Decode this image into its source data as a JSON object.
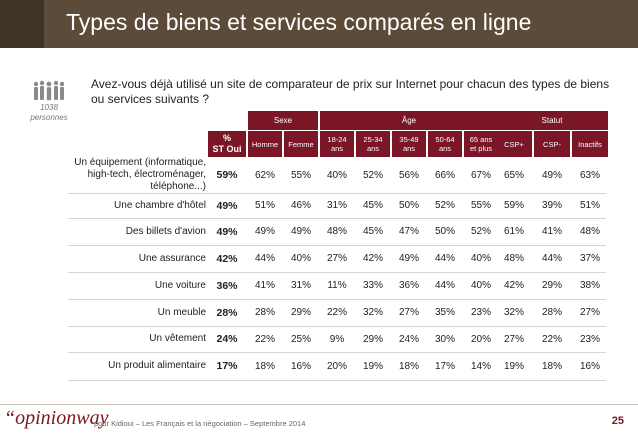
{
  "title": "Types de biens et services comparés en ligne",
  "question": "Avez-vous déjà utilisé un site de comparateur de prix sur Internet pour chacun des types de biens ou services suivants ?",
  "sample": [
    "1038",
    "personnes"
  ],
  "groups": [
    "Sexe",
    "Âge",
    "Statut"
  ],
  "headers": [
    "%\nST Oui",
    "Homme",
    "Femme",
    "18-24\nans",
    "25-34\nans",
    "35-49\nans",
    "50-64\nans",
    "65 ans\net plus",
    "CSP+",
    "CSP-",
    "Inactifs"
  ],
  "rows": [
    {
      "label": "Un équipement (informatique, high-tech, électroménager, téléphone...)",
      "values": [
        "59%",
        "62%",
        "55%",
        "40%",
        "52%",
        "56%",
        "66%",
        "67%",
        "65%",
        "49%",
        "63%"
      ]
    },
    {
      "label": "Une chambre d'hôtel",
      "values": [
        "49%",
        "51%",
        "46%",
        "31%",
        "45%",
        "50%",
        "52%",
        "55%",
        "59%",
        "39%",
        "51%"
      ]
    },
    {
      "label": "Des billets d'avion",
      "values": [
        "49%",
        "49%",
        "49%",
        "48%",
        "45%",
        "47%",
        "50%",
        "52%",
        "61%",
        "41%",
        "48%"
      ]
    },
    {
      "label": "Une assurance",
      "values": [
        "42%",
        "44%",
        "40%",
        "27%",
        "42%",
        "49%",
        "44%",
        "40%",
        "48%",
        "44%",
        "37%"
      ]
    },
    {
      "label": "Une voiture",
      "values": [
        "36%",
        "41%",
        "31%",
        "11%",
        "33%",
        "36%",
        "44%",
        "40%",
        "42%",
        "29%",
        "38%"
      ]
    },
    {
      "label": "Un meuble",
      "values": [
        "28%",
        "28%",
        "29%",
        "22%",
        "32%",
        "27%",
        "35%",
        "23%",
        "32%",
        "28%",
        "27%"
      ]
    },
    {
      "label": "Un vêtement",
      "values": [
        "24%",
        "22%",
        "25%",
        "9%",
        "29%",
        "24%",
        "30%",
        "20%",
        "27%",
        "22%",
        "23%"
      ]
    },
    {
      "label": "Un produit alimentaire",
      "values": [
        "17%",
        "18%",
        "16%",
        "20%",
        "19%",
        "18%",
        "17%",
        "14%",
        "19%",
        "18%",
        "16%"
      ]
    }
  ],
  "footer": {
    "logo": "“opinionway",
    "text": "pour Kidioui – Les Français et la négociation – Septembre 2014",
    "page": "25"
  },
  "colors": {
    "accent": "#7a1626",
    "title_bar": "#5b4b38"
  },
  "icons": [
    "people-group-icon"
  ]
}
